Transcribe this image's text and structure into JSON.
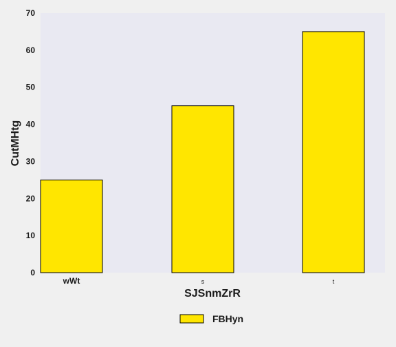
{
  "chart_data": {
    "type": "bar",
    "categories": [
      "wWt",
      "s",
      "t"
    ],
    "series": [
      {
        "name": "FBHyn",
        "values": [
          25,
          45,
          65
        ]
      }
    ],
    "xlabel": "SJSnmZrR",
    "ylabel": "CutMHtg",
    "ylim": [
      0,
      70
    ],
    "yticks": [
      0,
      10,
      20,
      30,
      40,
      50,
      60,
      70
    ],
    "grid": false,
    "legend_position": "bottom-center",
    "colors": {
      "plot_background": "#e9e9f2",
      "figure_background": "#f0f0f0",
      "bar_fill": "#ffe600",
      "bar_edge": "#000000"
    }
  }
}
